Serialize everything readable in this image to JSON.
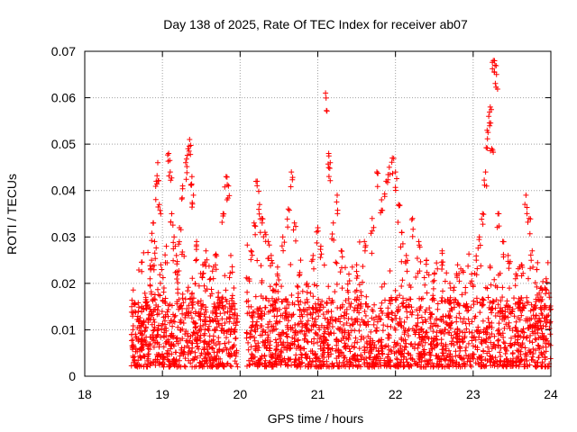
{
  "chart_data": {
    "type": "scatter",
    "title": "Day 138 of 2025, Rate Of TEC Index for receiver ab07",
    "xlabel": "GPS time / hours",
    "ylabel": "ROTI / TECUs",
    "xlim": [
      18,
      24
    ],
    "ylim": [
      0,
      0.07
    ],
    "x_ticks": [
      "18",
      "19",
      "20",
      "21",
      "22",
      "23",
      "24"
    ],
    "y_ticks": [
      "0",
      "0.01",
      "0.02",
      "0.03",
      "0.04",
      "0.05",
      "0.06",
      "0.07"
    ],
    "grid": true,
    "marker": "plus",
    "marker_color": "#ff0000",
    "data_x_range": [
      18.6,
      24.0
    ],
    "series": [
      {
        "points": [
          [
            18.62,
            0.01
          ],
          [
            18.66,
            0.006
          ],
          [
            18.7,
            0.012
          ],
          [
            18.74,
            0.008
          ],
          [
            18.8,
            0.016
          ],
          [
            18.84,
            0.021
          ],
          [
            18.86,
            0.025
          ],
          [
            18.88,
            0.033
          ],
          [
            18.9,
            0.029
          ],
          [
            18.92,
            0.042
          ],
          [
            18.94,
            0.046
          ],
          [
            18.96,
            0.037
          ],
          [
            18.98,
            0.024
          ],
          [
            19.02,
            0.019
          ],
          [
            19.05,
            0.028
          ],
          [
            19.08,
            0.048
          ],
          [
            19.1,
            0.044
          ],
          [
            19.12,
            0.035
          ],
          [
            19.15,
            0.03
          ],
          [
            19.18,
            0.026
          ],
          [
            19.22,
            0.032
          ],
          [
            19.26,
            0.041
          ],
          [
            19.3,
            0.046
          ],
          [
            19.33,
            0.049
          ],
          [
            19.35,
            0.051
          ],
          [
            19.38,
            0.043
          ],
          [
            19.4,
            0.039
          ],
          [
            19.44,
            0.029
          ],
          [
            19.52,
            0.024
          ],
          [
            19.56,
            0.027
          ],
          [
            19.62,
            0.021
          ],
          [
            19.68,
            0.026
          ],
          [
            19.72,
            0.018
          ],
          [
            19.78,
            0.035
          ],
          [
            19.82,
            0.043
          ],
          [
            19.85,
            0.041
          ],
          [
            19.88,
            0.026
          ],
          [
            19.92,
            0.019
          ],
          [
            20.1,
            0.021
          ],
          [
            20.14,
            0.027
          ],
          [
            20.18,
            0.033
          ],
          [
            20.22,
            0.042
          ],
          [
            20.25,
            0.037
          ],
          [
            20.28,
            0.034
          ],
          [
            20.32,
            0.031
          ],
          [
            20.36,
            0.029
          ],
          [
            20.4,
            0.026
          ],
          [
            20.48,
            0.022
          ],
          [
            20.55,
            0.03
          ],
          [
            20.62,
            0.036
          ],
          [
            20.66,
            0.044
          ],
          [
            20.7,
            0.033
          ],
          [
            20.78,
            0.025
          ],
          [
            20.86,
            0.02
          ],
          [
            20.94,
            0.026
          ],
          [
            21.0,
            0.032
          ],
          [
            21.04,
            0.028
          ],
          [
            21.1,
            0.061
          ],
          [
            21.14,
            0.048
          ],
          [
            21.16,
            0.046
          ],
          [
            21.2,
            0.033
          ],
          [
            21.25,
            0.039
          ],
          [
            21.3,
            0.027
          ],
          [
            21.4,
            0.022
          ],
          [
            21.5,
            0.024
          ],
          [
            21.6,
            0.029
          ],
          [
            21.7,
            0.034
          ],
          [
            21.76,
            0.044
          ],
          [
            21.82,
            0.038
          ],
          [
            21.88,
            0.042
          ],
          [
            21.92,
            0.045
          ],
          [
            21.96,
            0.047
          ],
          [
            22.0,
            0.044
          ],
          [
            22.04,
            0.037
          ],
          [
            22.08,
            0.031
          ],
          [
            22.14,
            0.026
          ],
          [
            22.22,
            0.034
          ],
          [
            22.3,
            0.029
          ],
          [
            22.4,
            0.025
          ],
          [
            22.5,
            0.022
          ],
          [
            22.6,
            0.027
          ],
          [
            22.7,
            0.02
          ],
          [
            22.8,
            0.024
          ],
          [
            22.9,
            0.018
          ],
          [
            22.98,
            0.022
          ],
          [
            23.04,
            0.025
          ],
          [
            23.08,
            0.03
          ],
          [
            23.12,
            0.035
          ],
          [
            23.16,
            0.044
          ],
          [
            23.18,
            0.053
          ],
          [
            23.2,
            0.056
          ],
          [
            23.22,
            0.058
          ],
          [
            23.24,
            0.049
          ],
          [
            23.26,
            0.068
          ],
          [
            23.28,
            0.067
          ],
          [
            23.3,
            0.065
          ],
          [
            23.33,
            0.035
          ],
          [
            23.38,
            0.029
          ],
          [
            23.45,
            0.026
          ],
          [
            23.55,
            0.022
          ],
          [
            23.62,
            0.024
          ],
          [
            23.68,
            0.039
          ],
          [
            23.72,
            0.034
          ],
          [
            23.76,
            0.027
          ],
          [
            23.82,
            0.023
          ],
          [
            23.88,
            0.019
          ],
          [
            23.94,
            0.021
          ],
          [
            23.98,
            0.017
          ]
        ]
      }
    ]
  }
}
